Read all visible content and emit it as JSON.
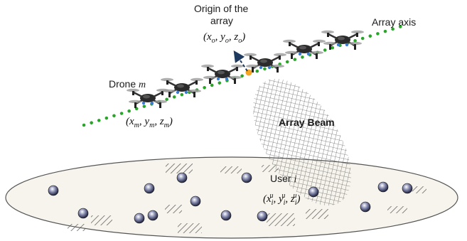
{
  "labels": {
    "origin_title_line1": "Origin of the",
    "origin_title_line2": "array",
    "array_axis": "Array axis",
    "drone": "Drone",
    "drone_index": "m",
    "array_beam": "Array Beam",
    "user": "User",
    "user_index": "i"
  },
  "coords": {
    "origin": {
      "x": "x",
      "x_sub": "o",
      "y": "y",
      "y_sub": "o",
      "z": "z",
      "z_sub": "o"
    },
    "drone": {
      "x": "x",
      "x_sub": "m",
      "y": "y",
      "y_sub": "m",
      "z": "z",
      "z_sub": "m"
    },
    "user": {
      "x": "x",
      "x_sub": "i",
      "x_sup": "u",
      "y": "y",
      "y_sub": "i",
      "y_sup": "u",
      "z": "z",
      "z_sub": "i",
      "z_sup": "u"
    }
  },
  "colors": {
    "axis_dots": "#2aa52a",
    "origin_point": "#f5a623",
    "arrow": "#1f3a5f",
    "ground_stroke": "#555555",
    "drone_body": "#2a2a2a"
  },
  "icons": {
    "drone": "quadcopter-drone-icon",
    "user": "user-sphere-icon"
  }
}
